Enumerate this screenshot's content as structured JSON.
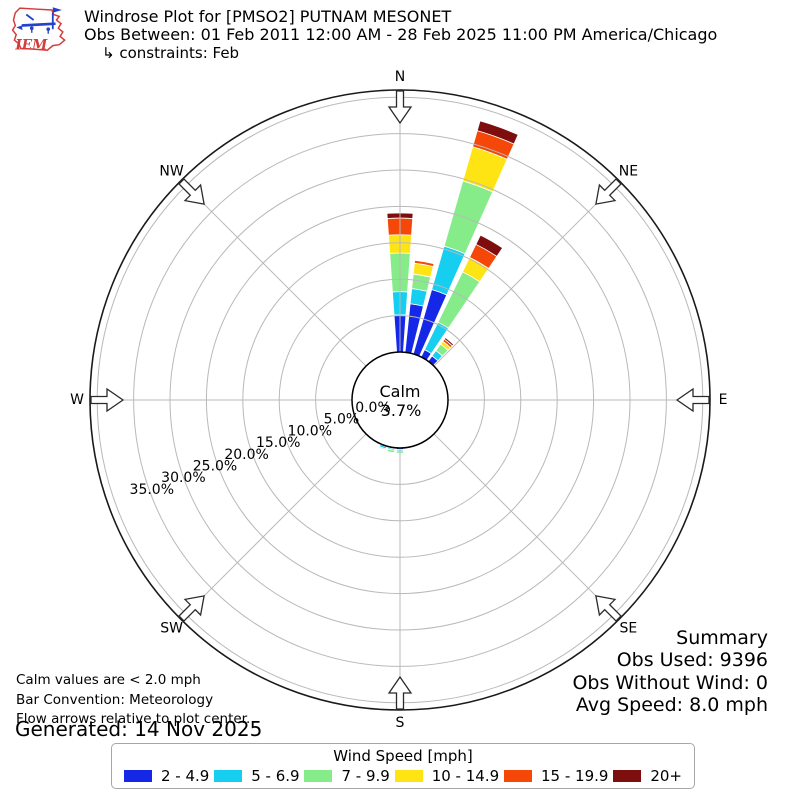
{
  "header": {
    "logo_text": "IEM",
    "title": "Windrose Plot for [PMSO2] PUTNAM MESONET",
    "subtitle": "Obs Between: 01 Feb 2011 12:00 AM - 28 Feb 2025 11:00 PM America/Chicago",
    "constraint": "↳ constraints: Feb"
  },
  "chart_data": {
    "type": "windrose",
    "units": "mph",
    "title": "Windrose Plot for [PMSO2] PUTNAM MESONET",
    "compass_labels": [
      "N",
      "NE",
      "E",
      "SE",
      "S",
      "SW",
      "W",
      "NW"
    ],
    "radial_tick_labels": [
      "0.0%",
      "5.0%",
      "10.0%",
      "15.0%",
      "20.0%",
      "25.0%",
      "30.0%",
      "35.0%"
    ],
    "radial_ticks_pct": [
      0,
      5,
      10,
      15,
      20,
      25,
      30,
      35
    ],
    "rmax_pct": 36,
    "grid": true,
    "sector_width_deg": 8,
    "calm_label": "Calm",
    "calm_value": "3.7%",
    "speed_bins": [
      {
        "label": "2 - 4.9",
        "color": "#1528E8"
      },
      {
        "label": "5 - 6.9",
        "color": "#15CEF0"
      },
      {
        "label": "7 - 9.9",
        "color": "#85EC89"
      },
      {
        "label": "10 - 14.9",
        "color": "#FFE414"
      },
      {
        "label": "15 - 19.9",
        "color": "#F44708"
      },
      {
        "label": "20+",
        "color": "#7E0D0D"
      }
    ],
    "petals": [
      {
        "direction_deg": 0,
        "frequencies_pct": [
          5.1,
          3.2,
          5.3,
          2.5,
          2.3,
          0.7
        ]
      },
      {
        "direction_deg": 10,
        "frequencies_pct": [
          6.7,
          2.1,
          2.0,
          1.5,
          0.4,
          0
        ]
      },
      {
        "direction_deg": 20,
        "frequencies_pct": [
          9.2,
          6.2,
          9.3,
          4.9,
          2.3,
          1.4
        ]
      },
      {
        "direction_deg": 30,
        "frequencies_pct": [
          1.1,
          4.2,
          7.7,
          2.2,
          2.0,
          1.4
        ]
      },
      {
        "direction_deg": 40,
        "frequencies_pct": [
          0.9,
          0.9,
          1.1,
          0.5,
          0.35,
          0.25
        ]
      },
      {
        "direction_deg": 180,
        "frequencies_pct": [
          0.2,
          0.2,
          0.3,
          0,
          0,
          0
        ]
      },
      {
        "direction_deg": 190,
        "frequencies_pct": [
          0.15,
          0.2,
          0.35,
          0.1,
          0,
          0
        ]
      },
      {
        "direction_deg": 200,
        "frequencies_pct": [
          0.1,
          0.3,
          0.15,
          0,
          0,
          0
        ]
      }
    ]
  },
  "notes": {
    "lines": [
      "Calm values are < 2.0 mph",
      "Bar Convention: Meteorology",
      "Flow arrows relative to plot center."
    ],
    "generated": "Generated: 14 Nov 2025"
  },
  "summary": {
    "title": "Summary",
    "lines": [
      "Obs Used: 9396",
      "Obs Without Wind: 0",
      "Avg Speed: 8.0 mph"
    ]
  },
  "legend": {
    "title": "Wind Speed [mph]"
  }
}
